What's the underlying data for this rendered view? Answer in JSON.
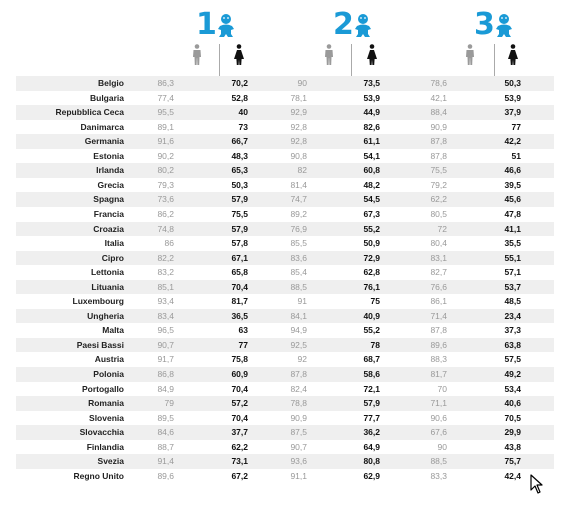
{
  "colors": {
    "accent": "#1a9ad6",
    "male_value": "#999999",
    "female_value": "#111111",
    "stripe": "#efefef"
  },
  "groups": [
    {
      "number": "1",
      "icon": "baby-icon"
    },
    {
      "number": "2",
      "icon": "baby-icon"
    },
    {
      "number": "3",
      "icon": "baby-icon"
    }
  ],
  "chart_data": {
    "type": "table",
    "columns": [
      "1 maschi",
      "1 femmine",
      "2 maschi",
      "2 femmine",
      "3 maschi",
      "3 femmine"
    ],
    "rows": [
      {
        "country": "Belgio",
        "values": [
          "86,3",
          "70,2",
          "90",
          "73,5",
          "78,6",
          "50,3"
        ]
      },
      {
        "country": "Bulgaria",
        "values": [
          "77,4",
          "52,8",
          "78,1",
          "53,9",
          "42,1",
          "53,9"
        ]
      },
      {
        "country": "Repubblica Ceca",
        "values": [
          "95,5",
          "40",
          "92,9",
          "44,9",
          "88,4",
          "37,9"
        ]
      },
      {
        "country": "Danimarca",
        "values": [
          "89,1",
          "73",
          "92,8",
          "82,6",
          "90,9",
          "77"
        ]
      },
      {
        "country": "Germania",
        "values": [
          "91,6",
          "66,7",
          "92,8",
          "61,1",
          "87,8",
          "42,2"
        ]
      },
      {
        "country": "Estonia",
        "values": [
          "90,2",
          "48,3",
          "90,8",
          "54,1",
          "87,8",
          "51"
        ]
      },
      {
        "country": "Irlanda",
        "values": [
          "80,2",
          "65,3",
          "82",
          "60,8",
          "75,5",
          "46,6"
        ]
      },
      {
        "country": "Grecia",
        "values": [
          "79,3",
          "50,3",
          "81,4",
          "48,2",
          "79,2",
          "39,5"
        ]
      },
      {
        "country": "Spagna",
        "values": [
          "73,6",
          "57,9",
          "74,7",
          "54,5",
          "62,2",
          "45,6"
        ]
      },
      {
        "country": "Francia",
        "values": [
          "86,2",
          "75,5",
          "89,2",
          "67,3",
          "80,5",
          "47,8"
        ]
      },
      {
        "country": "Croazia",
        "values": [
          "74,8",
          "57,9",
          "76,9",
          "55,2",
          "72",
          "41,1"
        ]
      },
      {
        "country": "Italia",
        "values": [
          "86",
          "57,8",
          "85,5",
          "50,9",
          "80,4",
          "35,5"
        ]
      },
      {
        "country": "Cipro",
        "values": [
          "82,2",
          "67,1",
          "83,6",
          "72,9",
          "83,1",
          "55,1"
        ]
      },
      {
        "country": "Lettonia",
        "values": [
          "83,2",
          "65,8",
          "85,4",
          "62,8",
          "82,7",
          "57,1"
        ]
      },
      {
        "country": "Lituania",
        "values": [
          "85,1",
          "70,4",
          "88,5",
          "76,1",
          "76,6",
          "53,7"
        ]
      },
      {
        "country": "Luxembourg",
        "values": [
          "93,4",
          "81,7",
          "91",
          "75",
          "86,1",
          "48,5"
        ]
      },
      {
        "country": "Ungheria",
        "values": [
          "83,4",
          "36,5",
          "84,1",
          "40,9",
          "71,4",
          "23,4"
        ]
      },
      {
        "country": "Malta",
        "values": [
          "96,5",
          "63",
          "94,9",
          "55,2",
          "87,8",
          "37,3"
        ]
      },
      {
        "country": "Paesi Bassi",
        "values": [
          "90,7",
          "77",
          "92,5",
          "78",
          "89,6",
          "63,8"
        ]
      },
      {
        "country": "Austria",
        "values": [
          "91,7",
          "75,8",
          "92",
          "68,7",
          "88,3",
          "57,5"
        ]
      },
      {
        "country": "Polonia",
        "values": [
          "86,8",
          "60,9",
          "87,8",
          "58,6",
          "81,7",
          "49,2"
        ]
      },
      {
        "country": "Portogallo",
        "values": [
          "84,9",
          "70,4",
          "82,4",
          "72,1",
          "70",
          "53,4"
        ]
      },
      {
        "country": "Romania",
        "values": [
          "79",
          "57,2",
          "78,8",
          "57,9",
          "71,1",
          "40,6"
        ]
      },
      {
        "country": "Slovenia",
        "values": [
          "89,5",
          "70,4",
          "90,9",
          "77,7",
          "90,6",
          "70,5"
        ]
      },
      {
        "country": "Slovacchia",
        "values": [
          "84,6",
          "37,7",
          "87,5",
          "36,2",
          "67,6",
          "29,9"
        ]
      },
      {
        "country": "Finlandia",
        "values": [
          "88,7",
          "62,2",
          "90,7",
          "64,9",
          "90",
          "43,8"
        ]
      },
      {
        "country": "Svezia",
        "values": [
          "91,4",
          "73,1",
          "93,6",
          "80,8",
          "88,5",
          "75,7"
        ]
      },
      {
        "country": "Regno Unito",
        "values": [
          "89,6",
          "67,2",
          "91,1",
          "62,9",
          "83,3",
          "42,4"
        ]
      }
    ]
  }
}
